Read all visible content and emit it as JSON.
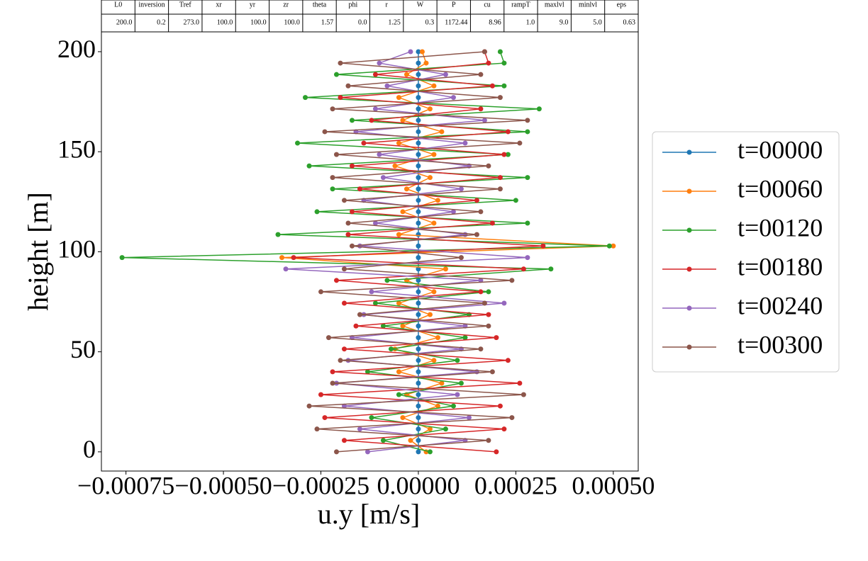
{
  "chart_data": {
    "type": "line",
    "x_label": "u.y [m/s]",
    "y_label": "height [m]",
    "table": {
      "columns": [
        "L0",
        "inversion",
        "Tref",
        "xr",
        "yr",
        "zr",
        "theta",
        "phi",
        "r",
        "W",
        "P",
        "cu",
        "rampT",
        "maxlvl",
        "minlvl",
        "eps"
      ],
      "rows": [
        [
          "200.0",
          "0.2",
          "273.0",
          "100.0",
          "100.0",
          "100.0",
          "1.57",
          "0.0",
          "1.25",
          "0.3",
          "1172.44",
          "8.96",
          "1.0",
          "9.0",
          "5.0",
          "0.63"
        ]
      ]
    },
    "y": [
      0,
      5.7,
      11.4,
      17.1,
      22.9,
      28.6,
      34.3,
      40,
      45.7,
      51.4,
      57.1,
      62.9,
      68.6,
      74.3,
      80,
      85.7,
      91.4,
      97.1,
      102.9,
      108.6,
      114.3,
      120,
      125.7,
      131.4,
      137.1,
      142.9,
      148.6,
      154.3,
      160,
      165.7,
      171.4,
      177.1,
      182.9,
      188.6,
      194.3,
      200
    ],
    "series": [
      {
        "name": "t=00000",
        "color": "#1f77b4",
        "values": [
          0,
          0,
          0,
          0,
          0,
          0,
          0,
          0,
          0,
          0,
          0,
          0,
          0,
          0,
          0,
          0,
          0,
          0,
          0,
          0,
          0,
          0,
          0,
          0,
          0,
          0,
          0,
          0,
          0,
          0,
          0,
          0,
          0,
          0,
          0,
          0
        ]
      },
      {
        "name": "t=00060",
        "color": "#ff7f0e",
        "values": [
          2e-05,
          -2e-05,
          3e-05,
          -4e-05,
          5e-05,
          -3e-05,
          6e-05,
          -5e-05,
          4e-05,
          -6e-05,
          5e-05,
          -4e-05,
          3e-05,
          -5e-05,
          4e-05,
          -3e-05,
          7e-05,
          -0.00035,
          0.0005,
          -5e-05,
          4e-05,
          -4e-05,
          5e-05,
          -3e-05,
          3e-05,
          -6e-05,
          4e-05,
          -5e-05,
          6e-05,
          -4e-05,
          3e-05,
          -5e-05,
          4e-05,
          -3e-05,
          2e-05,
          1e-05
        ]
      },
      {
        "name": "t=00120",
        "color": "#2ca02c",
        "values": [
          3e-05,
          -9e-05,
          7e-05,
          -0.00012,
          9e-05,
          -5e-05,
          0.00011,
          -0.00013,
          0.0001,
          -7e-05,
          0.00012,
          -9e-05,
          0.00013,
          -0.00011,
          0.00018,
          -8e-05,
          0.00034,
          -0.00076,
          0.00049,
          -0.00036,
          0.00028,
          -0.00026,
          0.00025,
          -0.00022,
          0.00028,
          -0.00028,
          0.00023,
          -0.00031,
          0.00028,
          -0.00017,
          0.00031,
          -0.00029,
          0.00022,
          -0.00021,
          0.00022,
          0.00021
        ]
      },
      {
        "name": "t=00180",
        "color": "#d62728",
        "values": [
          0.0002,
          -0.00019,
          0.00022,
          -0.00024,
          0.00021,
          -0.00025,
          0.00026,
          -0.00022,
          0.00023,
          -0.00019,
          0.0002,
          -0.00016,
          0.00018,
          -0.00019,
          0.00016,
          -0.00021,
          0.00027,
          -0.00032,
          0.00032,
          -0.00018,
          0.00019,
          -0.00017,
          0.00015,
          -0.00015,
          0.00021,
          -0.00017,
          0.00022,
          -0.00014,
          0.00023,
          -0.00012,
          0.00016,
          -0.0002,
          0.00019,
          -0.00011,
          0.00018,
          0.00017
        ]
      },
      {
        "name": "t=00240",
        "color": "#9467bd",
        "values": [
          -0.00013,
          0.00012,
          -0.00015,
          0.00013,
          -0.00019,
          0.0001,
          -0.00021,
          0.00015,
          -0.00018,
          0.00011,
          -0.00017,
          0.00012,
          -0.00014,
          0.00022,
          -0.00012,
          0.00016,
          -0.00034,
          0.00028,
          -0.00015,
          0.00012,
          -0.00011,
          9e-05,
          -0.00014,
          0.00011,
          -9e-05,
          0.00013,
          -0.0001,
          0.00012,
          -0.00016,
          0.00017,
          -0.00011,
          9e-05,
          -8e-05,
          7e-05,
          -0.0001,
          -2e-05
        ]
      },
      {
        "name": "t=00300",
        "color": "#8c564b",
        "values": [
          -0.00021,
          0.00018,
          -0.00026,
          0.00024,
          -0.00028,
          0.00027,
          -0.00022,
          0.00019,
          -0.0002,
          0.00016,
          -0.00023,
          0.00018,
          -0.00015,
          0.00017,
          -0.00025,
          0.00024,
          -0.00019,
          0.00011,
          -0.00017,
          0.00015,
          -0.00018,
          0.00016,
          -0.00019,
          0.00021,
          -0.00022,
          0.00018,
          -0.00021,
          0.00026,
          -0.00024,
          0.00028,
          -0.00022,
          0.00021,
          -0.00018,
          0.00016,
          -0.0002,
          0.00017
        ]
      }
    ],
    "xlim": [
      -0.000813,
      0.000564
    ],
    "ylim": [
      -9.6,
      209.9
    ],
    "xticks": [
      {
        "value": -0.00075,
        "label": "−0.00075"
      },
      {
        "value": -0.0005,
        "label": "−0.00050"
      },
      {
        "value": -0.00025,
        "label": "−0.00025"
      },
      {
        "value": 0,
        "label": "0.00000"
      },
      {
        "value": 0.00025,
        "label": "0.00025"
      },
      {
        "value": 0.0005,
        "label": "0.00050"
      }
    ],
    "yticks": [
      0,
      50,
      100,
      150,
      200
    ],
    "legend": "right"
  }
}
